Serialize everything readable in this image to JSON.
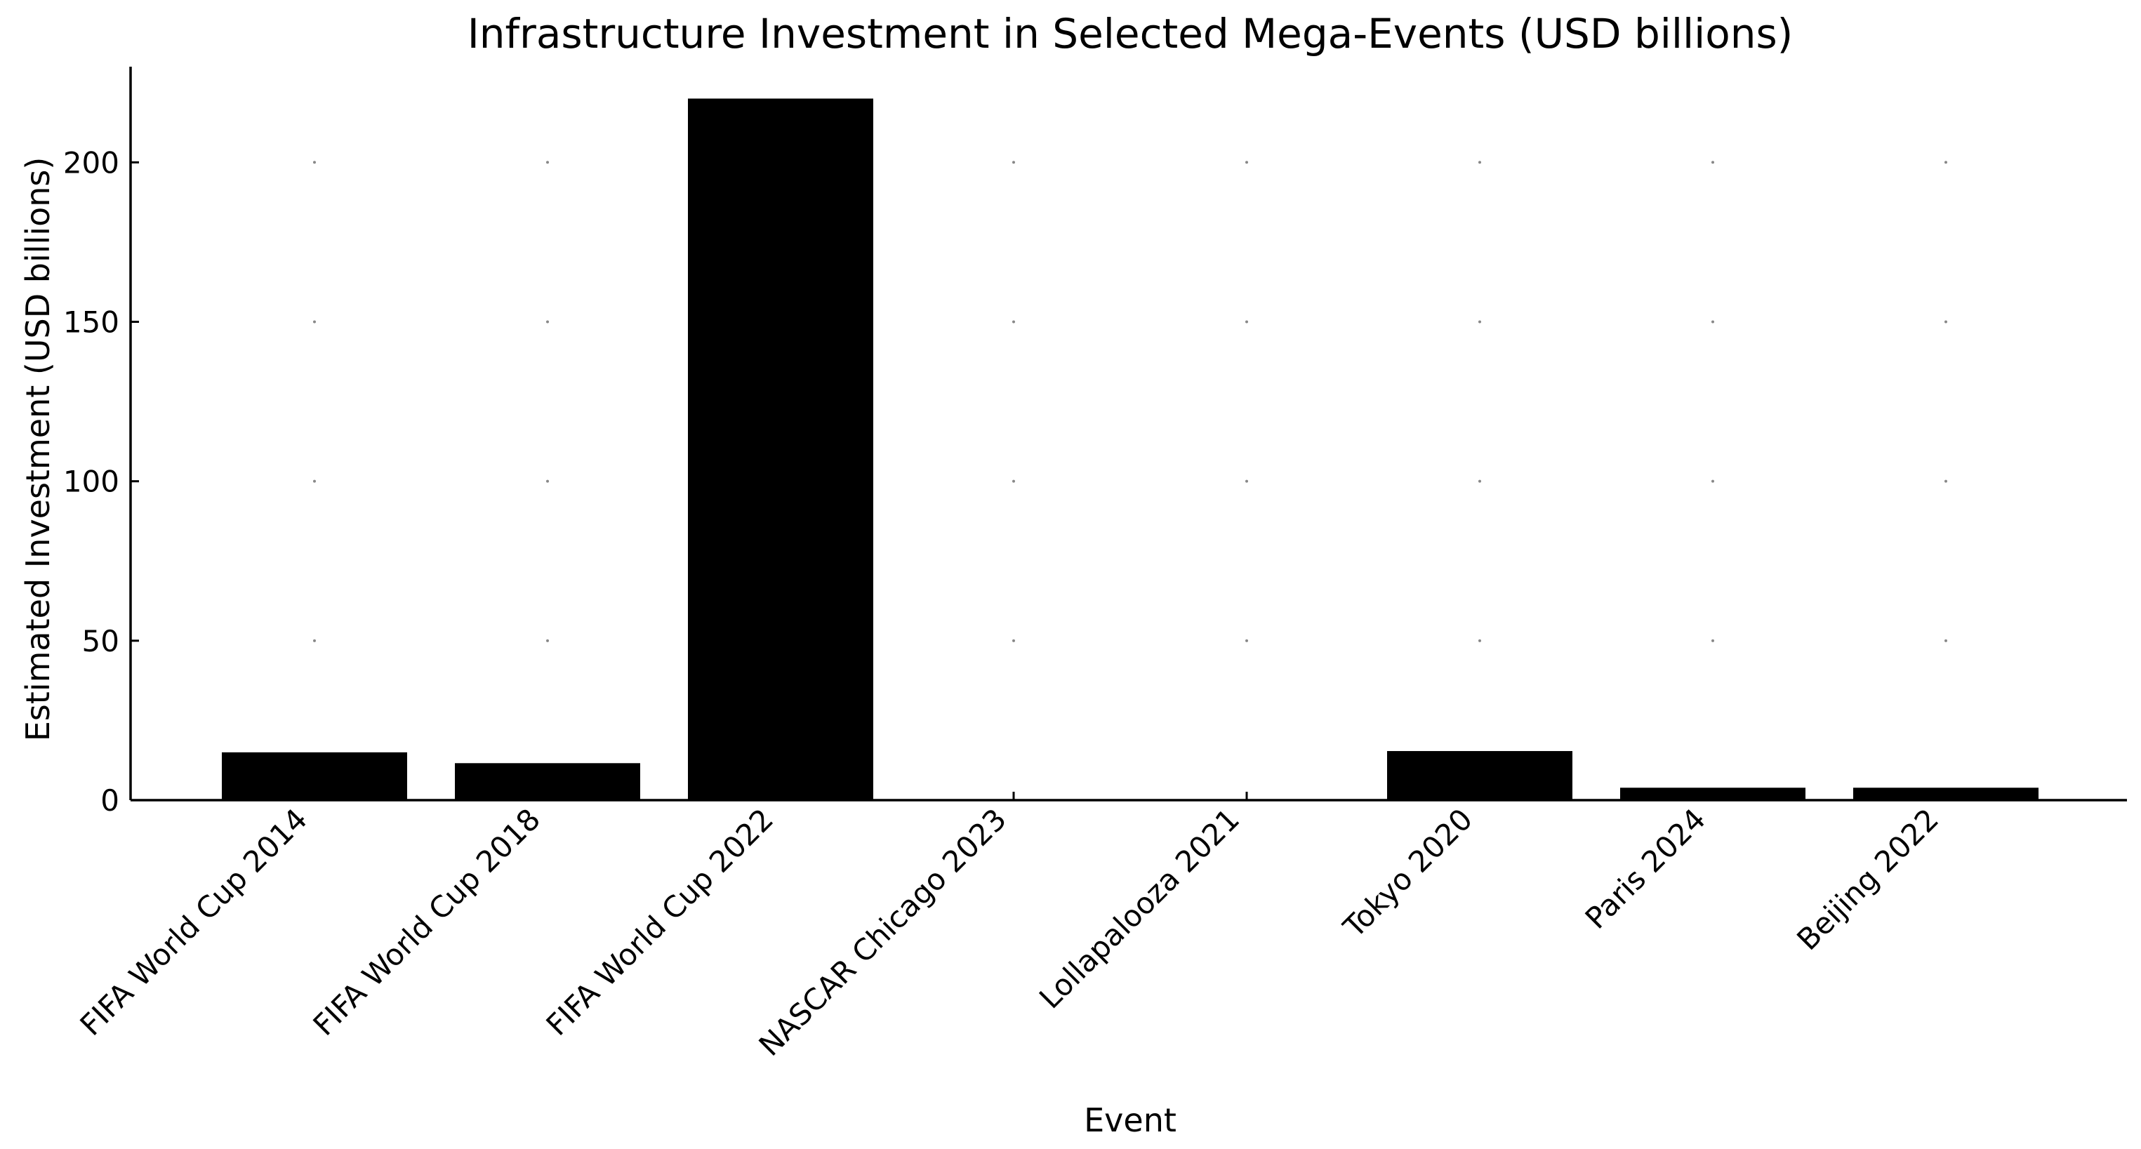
{
  "chart_data": {
    "type": "bar",
    "title": "Infrastructure Investment in Selected Mega-Events (USD billions)",
    "xlabel": "Event",
    "ylabel": "Estimated Investment (USD billions)",
    "categories": [
      "FIFA World Cup 2014",
      "FIFA World Cup 2018",
      "FIFA World Cup 2022",
      "NASCAR Chicago 2023",
      "Lollapalooza 2021",
      "Tokyo 2020",
      "Paris 2024",
      "Beijing 2022"
    ],
    "values": [
      15,
      11.6,
      220,
      0.1,
      0.05,
      15.4,
      3.9,
      3.9
    ],
    "ylim": [
      0,
      230
    ],
    "yticks": [
      0,
      50,
      100,
      150,
      200
    ],
    "grid": "dotted at tick intersections",
    "bar_color": "#000000"
  }
}
